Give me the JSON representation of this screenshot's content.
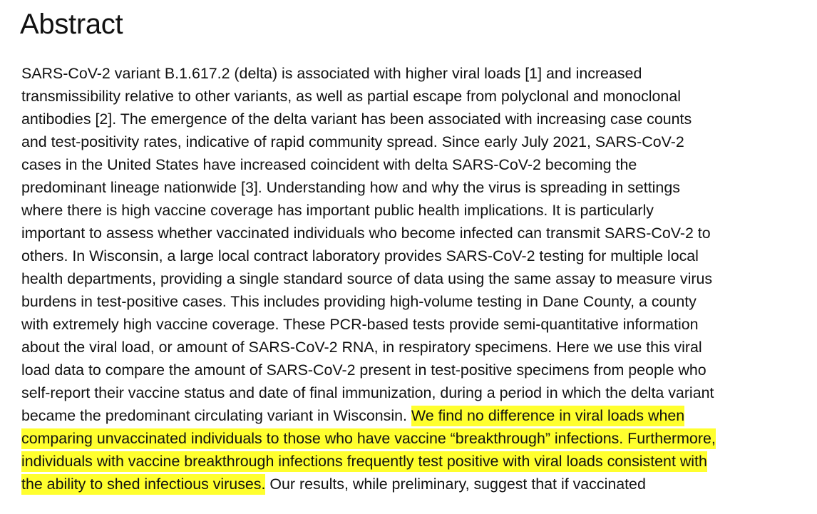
{
  "heading": "Abstract",
  "lines": [
    {
      "pre": "SARS-CoV-2 variant B.1.617.2 (delta) is associated with higher viral loads [1] and increased",
      "hl": "",
      "post": ""
    },
    {
      "pre": "transmissibility relative to other variants, as well as partial escape from polyclonal and monoclonal",
      "hl": "",
      "post": ""
    },
    {
      "pre": "antibodies [2]. The emergence of the delta variant has been associated with increasing case counts",
      "hl": "",
      "post": ""
    },
    {
      "pre": "and test-positivity rates, indicative of rapid community spread. Since early July 2021, SARS-CoV-2",
      "hl": "",
      "post": ""
    },
    {
      "pre": "cases in the United States have increased coincident with delta SARS-CoV-2 becoming the",
      "hl": "",
      "post": ""
    },
    {
      "pre": "predominant lineage nationwide [3]. Understanding how and why the virus is spreading in settings",
      "hl": "",
      "post": ""
    },
    {
      "pre": "where there is high vaccine coverage has important public health implications. It is particularly",
      "hl": "",
      "post": ""
    },
    {
      "pre": "important to assess whether vaccinated individuals who become infected can transmit SARS-CoV-2 to",
      "hl": "",
      "post": ""
    },
    {
      "pre": "others. In Wisconsin, a large local contract laboratory provides SARS-CoV-2 testing for multiple local",
      "hl": "",
      "post": ""
    },
    {
      "pre": "health departments, providing a single standard source of data using the same assay to measure virus",
      "hl": "",
      "post": ""
    },
    {
      "pre": "burdens in test-positive cases. This includes providing high-volume testing in Dane County, a county",
      "hl": "",
      "post": ""
    },
    {
      "pre": "with extremely high vaccine coverage. These PCR-based tests provide semi-quantitative information",
      "hl": "",
      "post": ""
    },
    {
      "pre": "about the viral load, or amount of SARS-CoV-2 RNA, in respiratory specimens. Here we use this viral",
      "hl": "",
      "post": ""
    },
    {
      "pre": "load data to compare the amount of SARS-CoV-2 present in test-positive specimens from people who",
      "hl": "",
      "post": ""
    },
    {
      "pre": "self-report their vaccine status and date of final immunization, during a period in which the delta variant",
      "hl": "",
      "post": ""
    },
    {
      "pre": "became the predominant circulating variant in Wisconsin. ",
      "hl": "We find no difference in viral loads when",
      "post": ""
    },
    {
      "pre": "",
      "hl": "comparing unvaccinated individuals to those who have vaccine “breakthrough” infections. Furthermore,",
      "post": ""
    },
    {
      "pre": "",
      "hl": "individuals with vaccine breakthrough infections frequently test positive with viral loads consistent with",
      "post": ""
    },
    {
      "pre": "",
      "hl": "the ability to shed infectious viruses.",
      "post": " Our results, while preliminary, suggest that if vaccinated"
    }
  ]
}
